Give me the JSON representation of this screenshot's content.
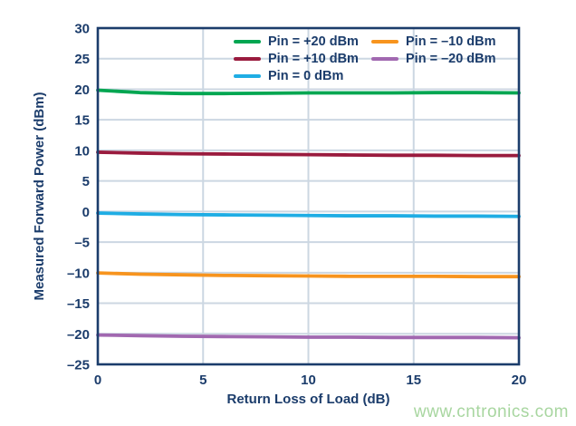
{
  "colors": {
    "axis_navy": "#1b3c6b",
    "grid": "#ccd7e2",
    "background": "#ffffff",
    "watermark_green": "#a8d6a0"
  },
  "watermark": {
    "text": "www.cntronics.com"
  },
  "chart_data": {
    "type": "line",
    "title": "",
    "xlabel": "Return Loss of Load (dB)",
    "ylabel": "Measured Forward Power (dBm)",
    "xlim": [
      0,
      20
    ],
    "ylim": [
      -25,
      30
    ],
    "x_ticks": [
      0,
      5,
      10,
      15,
      20
    ],
    "y_ticks": [
      30,
      25,
      20,
      15,
      10,
      5,
      0,
      -5,
      -10,
      -15,
      -20,
      -25
    ],
    "grid": true,
    "legend_position": "inside-top-center",
    "x": [
      0,
      2,
      4,
      6,
      8,
      10,
      12,
      14,
      16,
      18,
      20
    ],
    "series": [
      {
        "name": "Pin = +20 dBm",
        "color": "#00a651",
        "values": [
          19.85,
          19.45,
          19.3,
          19.3,
          19.35,
          19.4,
          19.4,
          19.4,
          19.45,
          19.45,
          19.4
        ]
      },
      {
        "name": "Pin = +10 dBm",
        "color": "#9a1b3e",
        "values": [
          9.7,
          9.55,
          9.45,
          9.4,
          9.35,
          9.3,
          9.25,
          9.2,
          9.2,
          9.15,
          9.15
        ]
      },
      {
        "name": "Pin = 0 dBm",
        "color": "#1fade4",
        "values": [
          -0.25,
          -0.4,
          -0.5,
          -0.55,
          -0.6,
          -0.65,
          -0.7,
          -0.7,
          -0.75,
          -0.75,
          -0.8
        ]
      },
      {
        "name": "Pin = –10 dBm",
        "color": "#f7941e",
        "values": [
          -10.05,
          -10.25,
          -10.35,
          -10.45,
          -10.5,
          -10.55,
          -10.6,
          -10.6,
          -10.6,
          -10.65,
          -10.65
        ]
      },
      {
        "name": "Pin = –20 dBm",
        "color": "#a168b0",
        "values": [
          -20.2,
          -20.3,
          -20.4,
          -20.45,
          -20.5,
          -20.55,
          -20.55,
          -20.6,
          -20.6,
          -20.6,
          -20.65
        ]
      }
    ]
  }
}
